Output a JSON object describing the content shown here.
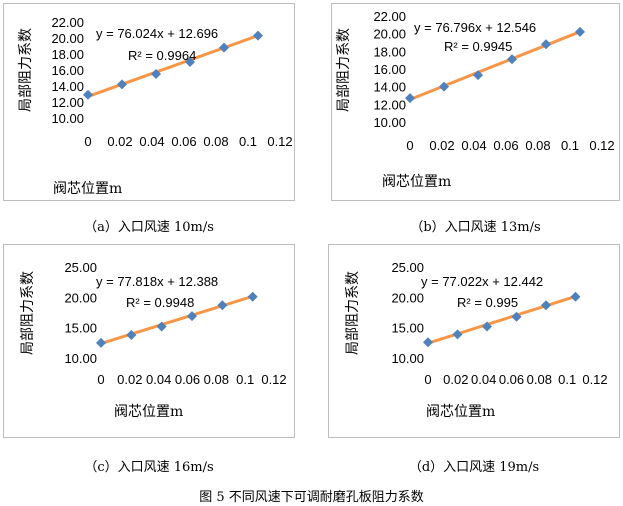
{
  "figure_title": "图 5  不同风速下可调耐磨孔板阻力系数",
  "chart_data": [
    {
      "type": "scatter",
      "caption": "（a）入口风速 10m/s",
      "xlabel": "阀芯位置m",
      "ylabel": "局部阻力系数",
      "equation": "y = 76.024x + 12.696",
      "r2": "R² = 0.9964",
      "trendline": {
        "slope": 76.024,
        "intercept": 12.696
      },
      "x": [
        0,
        0.02,
        0.04,
        0.06,
        0.08,
        0.1
      ],
      "y": [
        12.9,
        14.2,
        15.5,
        17.0,
        18.8,
        20.3
      ],
      "xlim": [
        0,
        0.12
      ],
      "ylim": [
        10,
        22
      ],
      "xticks": [
        "0",
        "0.02",
        "0.04",
        "0.06",
        "0.08",
        "0.1",
        "0.12"
      ],
      "yticks": [
        "10.00",
        "12.00",
        "14.00",
        "16.00",
        "18.00",
        "20.00",
        "22.00"
      ],
      "grid": false
    },
    {
      "type": "scatter",
      "caption": "（b）入口风速 13m/s",
      "xlabel": "阀芯位置m",
      "ylabel": "局部阻力系数",
      "equation": "y = 76.796x + 12.546",
      "r2": "R² = 0.9945",
      "trendline": {
        "slope": 76.796,
        "intercept": 12.546
      },
      "x": [
        0,
        0.02,
        0.04,
        0.06,
        0.08,
        0.1
      ],
      "y": [
        12.7,
        14.0,
        15.3,
        17.1,
        18.8,
        20.2
      ],
      "xlim": [
        0,
        0.12
      ],
      "ylim": [
        10,
        22
      ],
      "xticks": [
        "0",
        "0.02",
        "0.04",
        "0.06",
        "0.08",
        "0.1",
        "0.12"
      ],
      "yticks": [
        "10.00",
        "12.00",
        "14.00",
        "16.00",
        "18.00",
        "20.00",
        "22.00"
      ],
      "grid": false
    },
    {
      "type": "scatter",
      "caption": "（c）入口风速 16m/s",
      "xlabel": "阀芯位置m",
      "ylabel": "局部阻力系数",
      "equation": "y = 77.818x + 12.388",
      "r2": "R² = 0.9948",
      "trendline": {
        "slope": 77.818,
        "intercept": 12.388
      },
      "x": [
        0,
        0.02,
        0.04,
        0.06,
        0.08,
        0.1
      ],
      "y": [
        12.5,
        13.8,
        15.2,
        16.9,
        18.7,
        20.1
      ],
      "xlim": [
        0,
        0.12
      ],
      "ylim": [
        10,
        25
      ],
      "xticks": [
        "0",
        "0.02",
        "0.04",
        "0.06",
        "0.08",
        "0.1",
        "0.12"
      ],
      "yticks": [
        "10.00",
        "15.00",
        "20.00",
        "25.00"
      ],
      "grid": false
    },
    {
      "type": "scatter",
      "caption": "（d）入口风速 19m/s",
      "xlabel": "阀芯位置m",
      "ylabel": "局部阻力系数",
      "equation": "y = 77.022x + 12.442",
      "r2": "R² = 0.995",
      "trendline": {
        "slope": 77.022,
        "intercept": 12.442
      },
      "x": [
        0,
        0.02,
        0.04,
        0.06,
        0.08,
        0.1
      ],
      "y": [
        12.6,
        13.9,
        15.2,
        16.8,
        18.7,
        20.1
      ],
      "xlim": [
        0,
        0.12
      ],
      "ylim": [
        10,
        25
      ],
      "xticks": [
        "0",
        "0.02",
        "0.04",
        "0.06",
        "0.08",
        "0.1",
        "0.12"
      ],
      "yticks": [
        "10.00",
        "15.00",
        "20.00",
        "25.00"
      ],
      "grid": false
    }
  ],
  "colors": {
    "marker": "#4f81bd",
    "trendline": "#f79646"
  }
}
